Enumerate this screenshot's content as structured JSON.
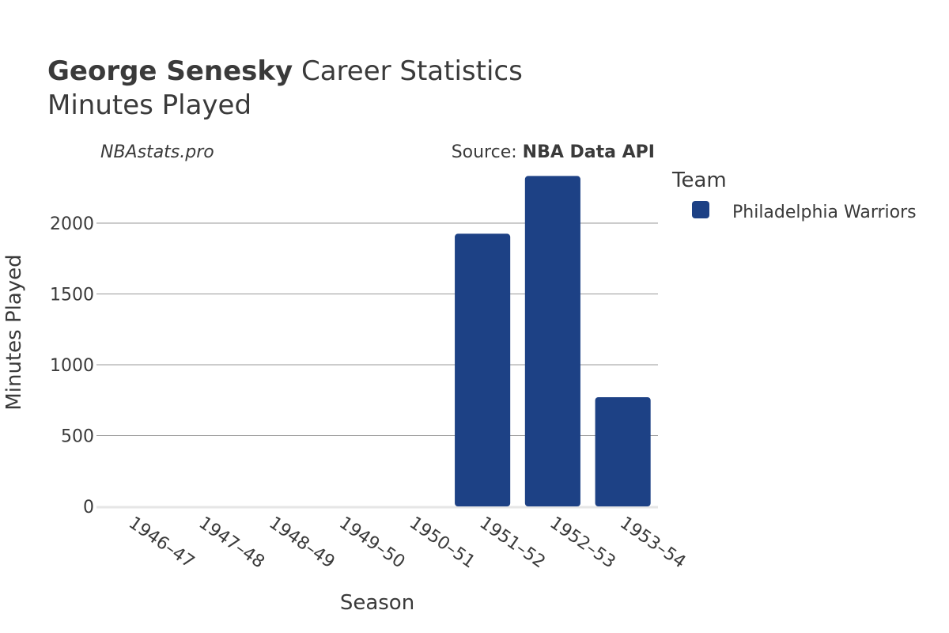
{
  "header": {
    "player_name": "George Senesky",
    "title_rest": "Career Statistics",
    "subtitle": "Minutes Played",
    "watermark": "NBAstats.pro",
    "source_prefix": "Source: ",
    "source_name": "NBA Data API"
  },
  "legend": {
    "title": "Team",
    "items": [
      "Philadelphia Warriors"
    ]
  },
  "colors": {
    "bar": "#1d4185",
    "grid": "#9a9a9a",
    "baseline": "#e6e6e6",
    "text": "#3a3a3a"
  },
  "chart_data": {
    "type": "bar",
    "categories": [
      "1946–47",
      "1947–48",
      "1948–49",
      "1949–50",
      "1950–51",
      "1951–52",
      "1952–53",
      "1953–54"
    ],
    "series": [
      {
        "name": "Philadelphia Warriors",
        "values": [
          0,
          0,
          0,
          0,
          0,
          1925,
          2333,
          771
        ]
      }
    ],
    "title": "George Senesky Career Statistics",
    "subtitle": "Minutes Played",
    "xlabel": "Season",
    "ylabel": "Minutes Played",
    "ylim": [
      0,
      2450
    ],
    "yticks": [
      0,
      500,
      1000,
      1500,
      2000
    ],
    "grid": true,
    "legend_position": "right"
  }
}
